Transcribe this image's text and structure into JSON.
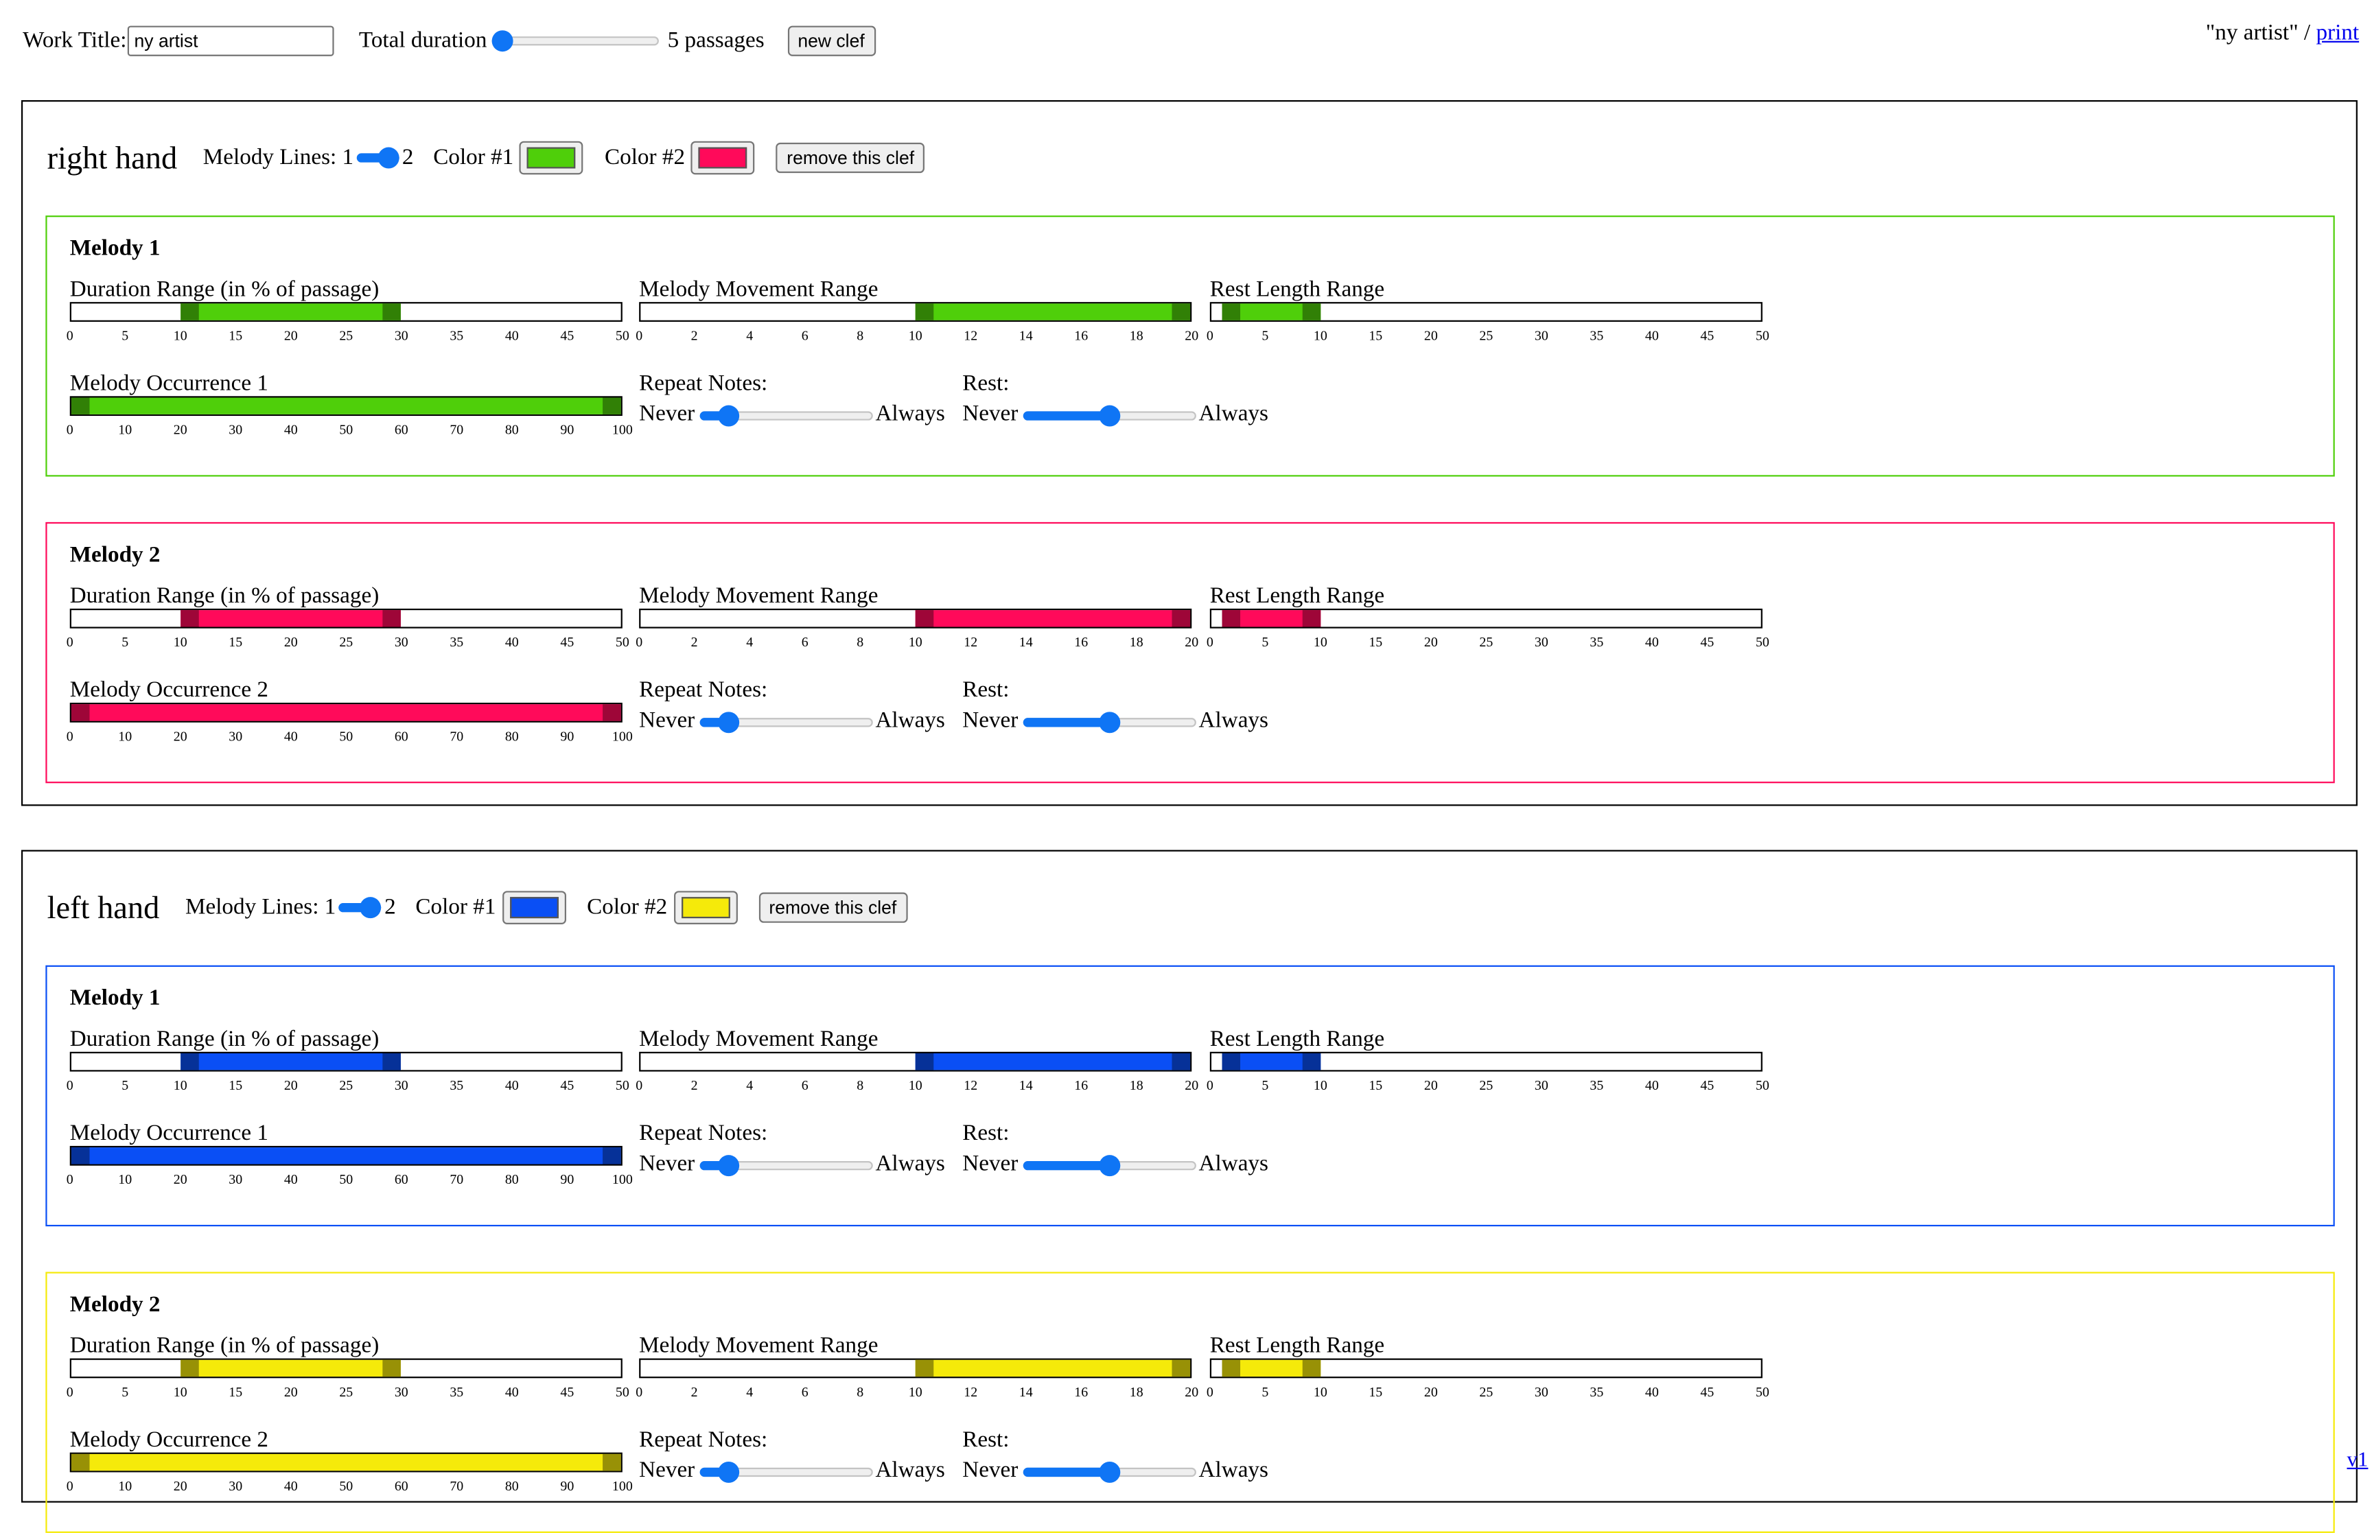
{
  "header": {
    "work_title_label": "Work Title:",
    "work_title_value": "ny artist",
    "total_duration_label": "Total duration",
    "total_duration_value": 0,
    "passages_label": "5 passages",
    "new_clef_label": "new clef",
    "title_quote": "\"ny artist\" / ",
    "print_label": "print"
  },
  "labels": {
    "melody_lines": "Melody Lines: 1",
    "melody_lines_max": "2",
    "color1": "Color #1",
    "color2": "Color #2",
    "remove": "remove this clef",
    "duration": "Duration Range (in % of passage)",
    "movement": "Melody Movement Range",
    "rest_length": "Rest Length Range",
    "repeat": "Repeat Notes:",
    "rest": "Rest:",
    "never": "Never",
    "always": "Always"
  },
  "scales": {
    "duration": {
      "min": 0,
      "max": 50,
      "ticks": [
        "0",
        "5",
        "10",
        "15",
        "20",
        "25",
        "30",
        "35",
        "40",
        "45",
        "50"
      ]
    },
    "movement": {
      "min": 0,
      "max": 20,
      "ticks": [
        "0",
        "2",
        "4",
        "6",
        "8",
        "10",
        "12",
        "14",
        "16",
        "18",
        "20"
      ]
    },
    "rest": {
      "min": 0,
      "max": 50,
      "ticks": [
        "0",
        "5",
        "10",
        "15",
        "20",
        "25",
        "30",
        "35",
        "40",
        "45",
        "50"
      ]
    },
    "occurrence": {
      "min": 0,
      "max": 100,
      "ticks": [
        "0",
        "10",
        "20",
        "30",
        "40",
        "50",
        "60",
        "70",
        "80",
        "90",
        "100"
      ]
    }
  },
  "clefs": [
    {
      "name": "right hand",
      "melody_lines": 2,
      "color1": "#4fcf0a",
      "color2": "#ff0a5a",
      "melodies": [
        {
          "title": "Melody 1",
          "occurrence_label": "Melody Occurrence 1",
          "duration": [
            10,
            30
          ],
          "movement": [
            10,
            20
          ],
          "rest": [
            1,
            10
          ],
          "occurrence": [
            0,
            100
          ],
          "repeat": 0.12,
          "rest_freq": 0.5
        },
        {
          "title": "Melody 2",
          "occurrence_label": "Melody Occurrence 2",
          "duration": [
            10,
            30
          ],
          "movement": [
            10,
            20
          ],
          "rest": [
            1,
            10
          ],
          "occurrence": [
            0,
            100
          ],
          "repeat": 0.12,
          "rest_freq": 0.5
        }
      ]
    },
    {
      "name": "left hand",
      "melody_lines": 2,
      "color1": "#0a4ff5",
      "color2": "#f5ea0a",
      "melodies": [
        {
          "title": "Melody 1",
          "occurrence_label": "Melody Occurrence 1",
          "duration": [
            10,
            30
          ],
          "movement": [
            10,
            20
          ],
          "rest": [
            1,
            10
          ],
          "occurrence": [
            0,
            100
          ],
          "repeat": 0.12,
          "rest_freq": 0.5
        },
        {
          "title": "Melody 2",
          "occurrence_label": "Melody Occurrence 2",
          "duration": [
            10,
            30
          ],
          "movement": [
            10,
            20
          ],
          "rest": [
            1,
            10
          ],
          "occurrence": [
            0,
            100
          ],
          "repeat": 0.12,
          "rest_freq": 0.5
        }
      ]
    }
  ],
  "footer": {
    "version": "v1"
  }
}
